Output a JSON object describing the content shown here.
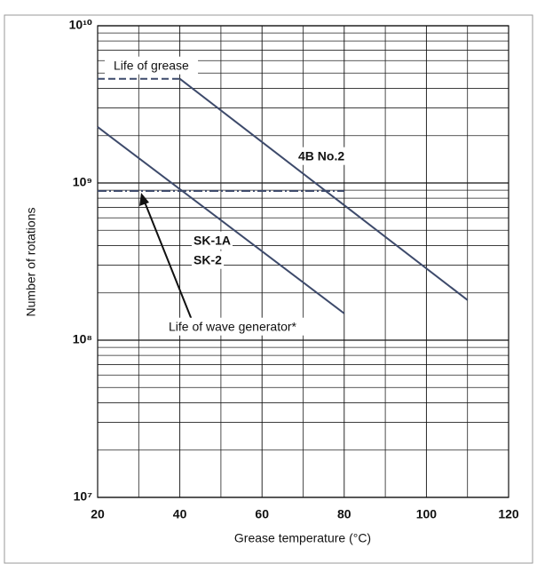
{
  "chart_data": {
    "type": "line",
    "xlabel": "Grease temperature (°C)",
    "ylabel": "Number of rotations",
    "log_y": true,
    "grid": true,
    "xlim": [
      20,
      120
    ],
    "xticks": [
      20,
      40,
      60,
      80,
      100,
      120
    ],
    "xminorticks": [
      30,
      50,
      70,
      90,
      110
    ],
    "ylim": [
      10000000,
      10000000000
    ],
    "yticks": [
      {
        "value": 10000000,
        "label": "10⁷"
      },
      {
        "value": 100000000,
        "label": "10⁸"
      },
      {
        "value": 1000000000,
        "label": "10⁹"
      },
      {
        "value": 10000000000,
        "label": "10¹⁰"
      }
    ],
    "yminorticks": [
      20000000,
      30000000,
      40000000,
      50000000,
      60000000,
      70000000,
      80000000,
      90000000,
      200000000,
      300000000,
      400000000,
      500000000,
      600000000,
      700000000,
      800000000,
      900000000,
      2000000000,
      3000000000,
      4000000000,
      5000000000,
      6000000000,
      7000000000,
      8000000000,
      9000000000
    ],
    "series": [
      {
        "color": "#3d4a6b",
        "style": "solid",
        "x": [
          40,
          110
        ],
        "values": [
          4600000000,
          180000000
        ]
      },
      {
        "color": "#3d4a6b",
        "style": "solid",
        "x": [
          20,
          80
        ],
        "values": [
          2270000000,
          148000000
        ]
      },
      {
        "color": "#3d4a6b",
        "style": "dashed",
        "x": [
          20,
          40
        ],
        "values": [
          4600000000,
          4600000000
        ]
      },
      {
        "color": "#3d4a6b",
        "style": "dashdot",
        "x": [
          20,
          80
        ],
        "values": [
          890000000,
          890000000
        ]
      }
    ],
    "annotations": [
      "4B No.2",
      "SK-1A",
      "SK-2",
      "Life of grease",
      "Life of wave generator*"
    ]
  }
}
